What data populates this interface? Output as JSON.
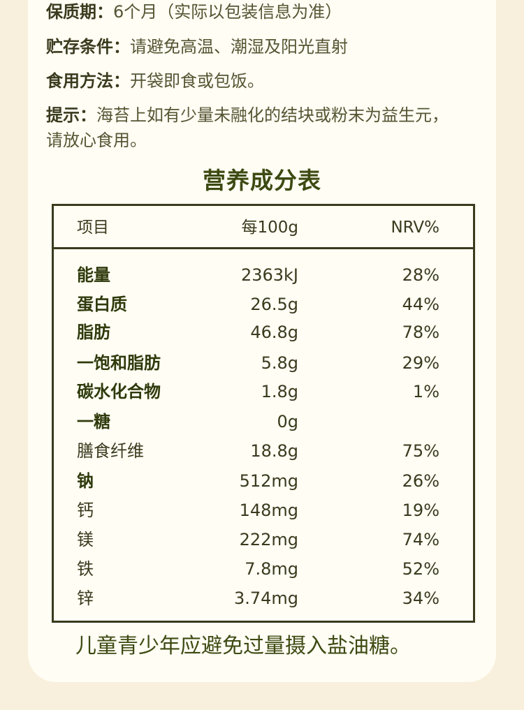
{
  "info": {
    "shelf_life": {
      "label": "保质期：",
      "value": "6个月（实际以包装信息为准）"
    },
    "storage": {
      "label": "贮存条件：",
      "value": "请避免高温、潮湿及阳光直射"
    },
    "usage": {
      "label": "食用方法：",
      "value": "开袋即食或包饭。"
    },
    "tip": {
      "label": "提示：",
      "value_line1": "海苔上如有少量未融化的结块或粉末为益生元，",
      "value_line2": "请放心食用。"
    }
  },
  "table": {
    "title": "营养成分表",
    "headers": {
      "name": "项目",
      "per": "每100g",
      "nrv": "NRV%"
    },
    "rows": [
      {
        "name": "能量",
        "per": "2363kJ",
        "nrv": "28%",
        "bold": true
      },
      {
        "name": "蛋白质",
        "per": "26.5g",
        "nrv": "44%",
        "bold": true
      },
      {
        "name": "脂肪",
        "per": "46.8g",
        "nrv": "78%",
        "bold": true
      },
      {
        "name": "一饱和脂肪",
        "per": "5.8g",
        "nrv": "29%",
        "bold": true
      },
      {
        "name": "碳水化合物",
        "per": "1.8g",
        "nrv": "1%",
        "bold": true
      },
      {
        "name": "一糖",
        "per": "0g",
        "nrv": "",
        "bold": true
      },
      {
        "name": "膳食纤维",
        "per": "18.8g",
        "nrv": "75%",
        "bold": false
      },
      {
        "name": "钠",
        "per": "512mg",
        "nrv": "26%",
        "bold": true
      },
      {
        "name": "钙",
        "per": "148mg",
        "nrv": "19%",
        "bold": false
      },
      {
        "name": "镁",
        "per": "222mg",
        "nrv": "74%",
        "bold": false
      },
      {
        "name": "铁",
        "per": "7.8mg",
        "nrv": "52%",
        "bold": false
      },
      {
        "name": "锌",
        "per": "3.74mg",
        "nrv": "34%",
        "bold": false
      }
    ]
  },
  "footer": {
    "text": "儿童青少年应避免过量摄入盐油糖。"
  },
  "colors": {
    "page_bg": "#f8f0dd",
    "card_bg": "#fffdf4",
    "title_green": "#3d4a12",
    "text_dark": "#3a3a1e"
  }
}
